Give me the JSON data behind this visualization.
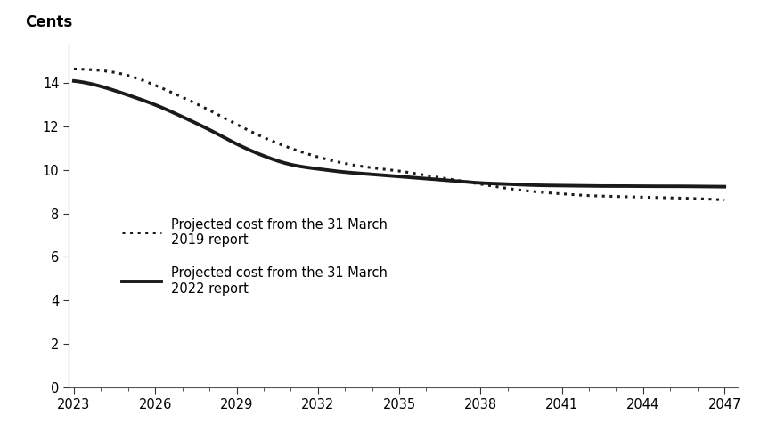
{
  "title": "",
  "ylabel": "Cents",
  "xlabel": "",
  "x_start": 2023,
  "x_end": 2047,
  "y_ticks": [
    0,
    2,
    4,
    6,
    8,
    10,
    12,
    14
  ],
  "x_ticks": [
    2023,
    2026,
    2029,
    2032,
    2035,
    2038,
    2041,
    2044,
    2047
  ],
  "ylim": [
    0,
    15.8
  ],
  "xlim": [
    2022.8,
    2047.5
  ],
  "legend_dotted": "Projected cost from the 31 March\n2019 report",
  "legend_solid": "Projected cost from the 31 March\n2022 report",
  "line_color": "#1a1a1a",
  "background_color": "#ffffff",
  "curve2019_points": [
    [
      2023,
      14.65
    ],
    [
      2024,
      14.58
    ],
    [
      2025,
      14.35
    ],
    [
      2026,
      13.9
    ],
    [
      2027,
      13.35
    ],
    [
      2028,
      12.75
    ],
    [
      2029,
      12.1
    ],
    [
      2030,
      11.5
    ],
    [
      2031,
      11.0
    ],
    [
      2032,
      10.6
    ],
    [
      2033,
      10.3
    ],
    [
      2034,
      10.1
    ],
    [
      2035,
      9.95
    ],
    [
      2036,
      9.75
    ],
    [
      2037,
      9.55
    ],
    [
      2038,
      9.35
    ],
    [
      2039,
      9.15
    ],
    [
      2040,
      9.0
    ],
    [
      2041,
      8.9
    ],
    [
      2042,
      8.82
    ],
    [
      2043,
      8.78
    ],
    [
      2044,
      8.75
    ],
    [
      2045,
      8.72
    ],
    [
      2046,
      8.68
    ],
    [
      2047,
      8.62
    ]
  ],
  "curve2022_points": [
    [
      2023,
      14.1
    ],
    [
      2024,
      13.85
    ],
    [
      2025,
      13.45
    ],
    [
      2026,
      13.0
    ],
    [
      2027,
      12.45
    ],
    [
      2028,
      11.85
    ],
    [
      2029,
      11.2
    ],
    [
      2030,
      10.65
    ],
    [
      2031,
      10.25
    ],
    [
      2032,
      10.05
    ],
    [
      2033,
      9.9
    ],
    [
      2034,
      9.8
    ],
    [
      2035,
      9.7
    ],
    [
      2036,
      9.6
    ],
    [
      2037,
      9.5
    ],
    [
      2038,
      9.4
    ],
    [
      2039,
      9.35
    ],
    [
      2040,
      9.3
    ],
    [
      2041,
      9.28
    ],
    [
      2042,
      9.26
    ],
    [
      2043,
      9.26
    ],
    [
      2044,
      9.25
    ],
    [
      2045,
      9.25
    ],
    [
      2046,
      9.24
    ],
    [
      2047,
      9.23
    ]
  ]
}
